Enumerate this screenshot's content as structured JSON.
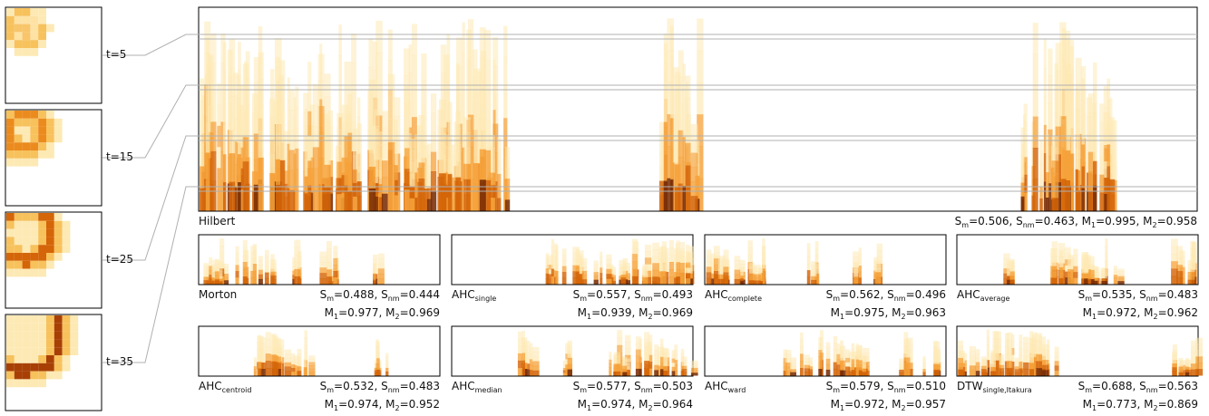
{
  "snapshots": [
    {
      "label": "t=5"
    },
    {
      "label": "t=15"
    },
    {
      "label": "t=25"
    },
    {
      "label": "t=35"
    }
  ],
  "hilbert": {
    "name": "Hilbert",
    "metrics": {
      "sm": "0.506",
      "snm": "0.463",
      "m1": "0.995",
      "m2": "0.958"
    }
  },
  "panels": [
    {
      "name": "Morton",
      "sub": "",
      "sm": "0.488",
      "snm": "0.444",
      "m1": "0.977",
      "m2": "0.969"
    },
    {
      "name": "AHC",
      "sub": "single",
      "sm": "0.557",
      "snm": "0.493",
      "m1": "0.939",
      "m2": "0.969"
    },
    {
      "name": "AHC",
      "sub": "complete",
      "sm": "0.562",
      "snm": "0.496",
      "m1": "0.975",
      "m2": "0.963"
    },
    {
      "name": "AHC",
      "sub": "average",
      "sm": "0.535",
      "snm": "0.483",
      "m1": "0.972",
      "m2": "0.962"
    },
    {
      "name": "AHC",
      "sub": "centroid",
      "sm": "0.532",
      "snm": "0.483",
      "m1": "0.974",
      "m2": "0.952"
    },
    {
      "name": "AHC",
      "sub": "median",
      "sm": "0.577",
      "snm": "0.503",
      "m1": "0.974",
      "m2": "0.964"
    },
    {
      "name": "AHC",
      "sub": "ward",
      "sm": "0.579",
      "snm": "0.510",
      "m1": "0.972",
      "m2": "0.957"
    },
    {
      "name": "DTW",
      "sub": "single,Itakura",
      "sm": "0.688",
      "snm": "0.563",
      "m1": "0.773",
      "m2": "0.869"
    }
  ],
  "metric_labels": {
    "s": "S",
    "m": "M",
    "sub_m": "m",
    "sub_nm": "nm",
    "sub_1": "1",
    "sub_2": "2",
    "eq": "=",
    "sep": ", "
  },
  "colors": {
    "light": "#fde9b4",
    "mid": "#f5a23a",
    "deep": "#d46508",
    "dark": "#7a2e04",
    "frame": "#000000",
    "guide": "#b0b0b0"
  }
}
